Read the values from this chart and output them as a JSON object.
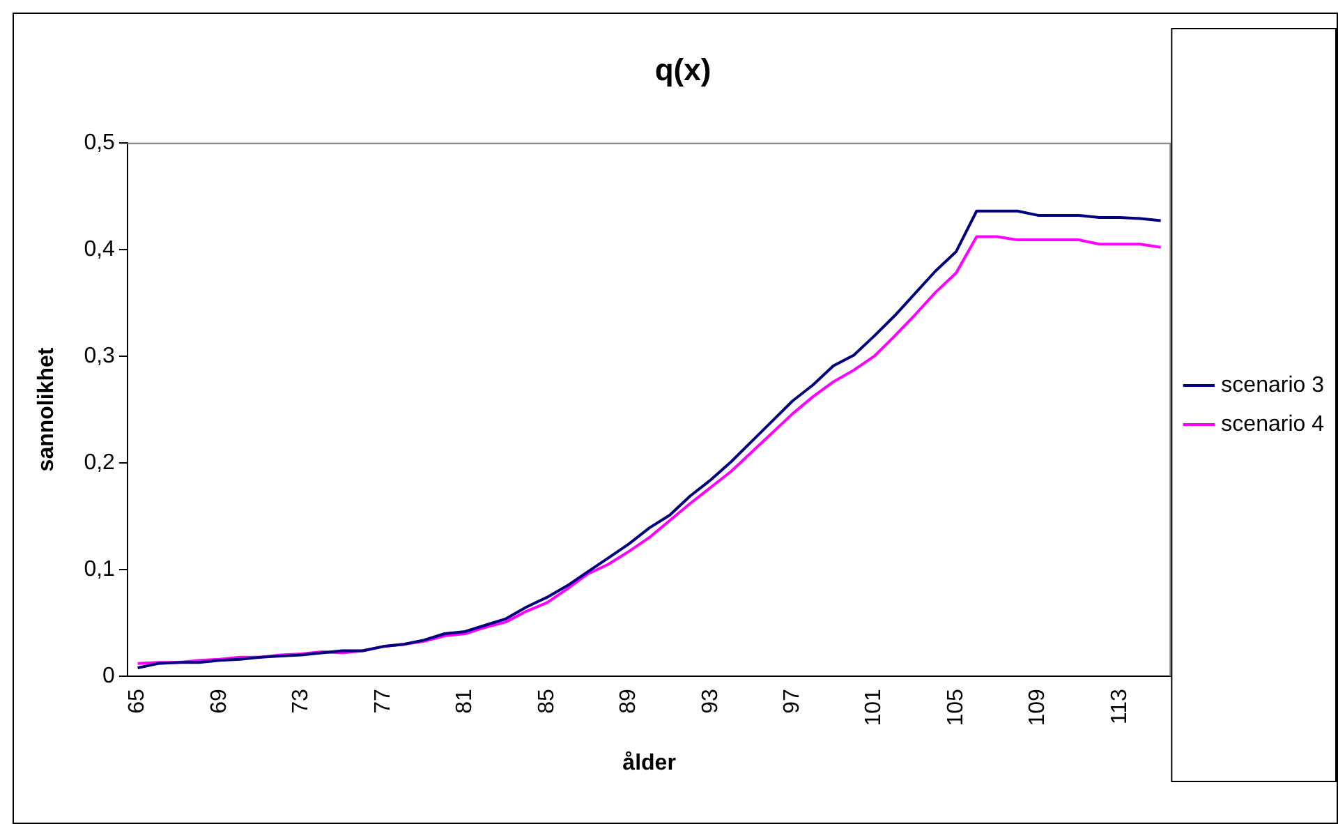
{
  "chart_data": {
    "type": "line",
    "title": "q(x)",
    "xlabel": "ålder",
    "ylabel": "sannolikhet",
    "categories": [
      "65",
      null,
      null,
      null,
      "69",
      null,
      null,
      null,
      "73",
      null,
      null,
      null,
      "77",
      null,
      null,
      null,
      "81",
      null,
      null,
      null,
      "85",
      null,
      null,
      null,
      "89",
      null,
      null,
      null,
      "93",
      null,
      null,
      null,
      "97",
      null,
      null,
      null,
      "101",
      null,
      null,
      null,
      "105",
      null,
      null,
      null,
      "109",
      null,
      null,
      null,
      "113",
      null,
      null
    ],
    "series": [
      {
        "name": "scenario 3",
        "color": "#000080",
        "values": [
          0.008,
          0.012,
          0.013,
          0.013,
          0.015,
          0.016,
          0.018,
          0.019,
          0.02,
          0.022,
          0.024,
          0.024,
          0.028,
          0.03,
          0.034,
          0.04,
          0.042,
          0.048,
          0.054,
          0.065,
          0.074,
          0.085,
          0.098,
          0.111,
          0.124,
          0.139,
          0.151,
          0.169,
          0.184,
          0.201,
          0.22,
          0.239,
          0.258,
          0.273,
          0.291,
          0.301,
          0.319,
          0.338,
          0.359,
          0.38,
          0.398,
          0.436,
          0.436,
          0.436,
          0.432,
          0.432,
          0.432,
          0.43,
          0.43,
          0.429,
          0.427
        ]
      },
      {
        "name": "scenario 4",
        "color": "#ff00ff",
        "values": [
          0.012,
          0.013,
          0.013,
          0.015,
          0.016,
          0.018,
          0.018,
          0.02,
          0.021,
          0.023,
          0.022,
          0.024,
          0.028,
          0.03,
          0.033,
          0.038,
          0.04,
          0.046,
          0.051,
          0.061,
          0.069,
          0.082,
          0.096,
          0.105,
          0.117,
          0.13,
          0.146,
          0.162,
          0.177,
          0.192,
          0.21,
          0.228,
          0.246,
          0.262,
          0.276,
          0.287,
          0.3,
          0.319,
          0.339,
          0.36,
          0.378,
          0.412,
          0.412,
          0.409,
          0.409,
          0.409,
          0.409,
          0.405,
          0.405,
          0.405,
          0.402
        ]
      }
    ],
    "ylim": [
      0,
      0.5
    ],
    "yticks": [
      0,
      {
        "value": 0.1,
        "label": "0,1"
      },
      {
        "value": 0.2,
        "label": "0,2"
      },
      {
        "value": 0.3,
        "label": "0,3"
      },
      {
        "value": 0.4,
        "label": "0,4"
      },
      {
        "value": 0.5,
        "label": "0,5"
      }
    ],
    "grid": false,
    "legend": "right",
    "marker": "none",
    "line_style": "solid"
  }
}
